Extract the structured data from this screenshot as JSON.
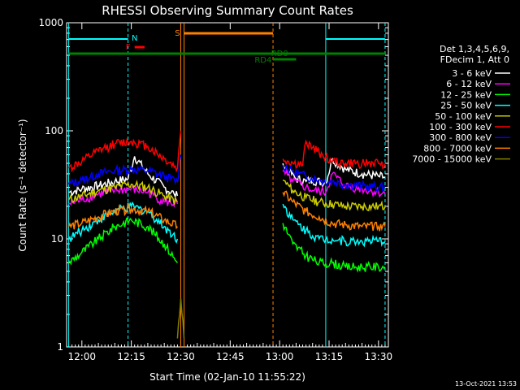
{
  "chart_data": {
    "type": "line",
    "title": "RHESSI Observing Summary Count Rates",
    "xlabel": "Start Time (02-Jan-10 11:55:22)",
    "ylabel": "Count Rate (s⁻¹ detector⁻¹)",
    "yscale": "log",
    "ylim": [
      1,
      1000
    ],
    "xlim": [
      "11:55:22",
      "13:33:00"
    ],
    "x_ticks": [
      "12:00",
      "12:15",
      "12:30",
      "12:45",
      "13:00",
      "13:15",
      "13:30"
    ],
    "y_ticks": [
      "1",
      "10",
      "100",
      "1000"
    ],
    "legend_header": [
      "Det 1,3,4,5,6,9,",
      "FDecim 1, Att 0"
    ],
    "legend_position": "right",
    "series": [
      {
        "name": "3 - 6 keV",
        "color": "#ffffff",
        "x": [
          "11:56",
          "12:00",
          "12:05",
          "12:10",
          "12:14",
          "12:16",
          "12:20",
          "12:25",
          "12:28",
          "12:29",
          "13:01",
          "13:03",
          "13:05",
          "13:08",
          "13:10",
          "13:14",
          "13:16",
          "13:20",
          "13:25",
          "13:30",
          "13:32"
        ],
        "values": [
          27,
          29,
          31,
          34,
          36,
          58,
          40,
          30,
          26,
          25,
          50,
          42,
          36,
          34,
          35,
          33,
          55,
          44,
          40,
          38,
          37
        ]
      },
      {
        "name": "6 - 12 keV",
        "color": "#ff00ff",
        "x": [
          "11:56",
          "12:00",
          "12:05",
          "12:10",
          "12:15",
          "12:20",
          "12:25",
          "12:29",
          "13:01",
          "13:04",
          "13:08",
          "13:10",
          "13:14",
          "13:16",
          "13:20",
          "13:25",
          "13:30",
          "13:32"
        ],
        "values": [
          21,
          23,
          26,
          28,
          29,
          27,
          22,
          21,
          42,
          34,
          30,
          28,
          27,
          40,
          31,
          29,
          27,
          26
        ]
      },
      {
        "name": "12 - 25 keV",
        "color": "#00ff00",
        "x": [
          "11:56",
          "12:00",
          "12:05",
          "12:10",
          "12:15",
          "12:20",
          "12:25",
          "12:29",
          "13:01",
          "13:04",
          "13:08",
          "13:12",
          "13:16",
          "13:20",
          "13:25",
          "13:30",
          "13:32"
        ],
        "values": [
          6,
          7.5,
          10,
          13,
          15,
          13,
          9,
          6,
          14,
          9,
          7,
          6,
          6,
          5.5,
          5.5,
          5.5,
          5.5
        ]
      },
      {
        "name": "25 - 50 keV",
        "color": "#00ffff",
        "x": [
          "11:56",
          "12:00",
          "12:05",
          "12:10",
          "12:15",
          "12:20",
          "12:25",
          "12:29",
          "13:01",
          "13:04",
          "13:08",
          "13:12",
          "13:16",
          "13:20",
          "13:25",
          "13:30",
          "13:32"
        ],
        "values": [
          10,
          12,
          15,
          18,
          20,
          18,
          13,
          10,
          21,
          15,
          12,
          10,
          10,
          9.5,
          9.5,
          9.5,
          9.5
        ]
      },
      {
        "name": "50 - 100 keV",
        "color": "#cccc00",
        "x": [
          "11:56",
          "12:00",
          "12:05",
          "12:10",
          "12:15",
          "12:20",
          "12:25",
          "12:29",
          "13:01",
          "13:04",
          "13:08",
          "13:12",
          "13:16",
          "13:20",
          "13:25",
          "13:30",
          "13:32"
        ],
        "values": [
          23,
          25,
          28,
          30,
          32,
          30,
          25,
          22,
          35,
          28,
          24,
          22,
          21,
          20,
          20,
          20,
          20
        ]
      },
      {
        "name": "100 - 300 keV",
        "color": "#ff0000",
        "x": [
          "11:56",
          "12:00",
          "12:05",
          "12:10",
          "12:15",
          "12:20",
          "12:25",
          "12:29",
          "12:30",
          "13:01",
          "13:04",
          "13:07",
          "13:08",
          "13:10",
          "13:13",
          "13:16",
          "13:20",
          "13:25",
          "13:30",
          "13:32"
        ],
        "values": [
          45,
          52,
          65,
          76,
          80,
          72,
          55,
          45,
          100,
          55,
          50,
          48,
          80,
          70,
          60,
          52,
          50,
          50,
          50,
          50
        ]
      },
      {
        "name": "300 - 800 keV",
        "color": "#0000ff",
        "x": [
          "11:56",
          "12:00",
          "12:05",
          "12:10",
          "12:15",
          "12:20",
          "12:25",
          "12:29",
          "12:30",
          "13:01",
          "13:04",
          "13:08",
          "13:12",
          "13:16",
          "13:20",
          "13:25",
          "13:30",
          "13:32"
        ],
        "values": [
          32,
          35,
          40,
          43,
          44,
          43,
          38,
          34,
          60,
          48,
          42,
          38,
          35,
          34,
          32,
          31,
          30,
          30
        ]
      },
      {
        "name": "800 - 7000 keV",
        "color": "#ff8000",
        "x": [
          "11:56",
          "12:00",
          "12:05",
          "12:10",
          "12:15",
          "12:20",
          "12:25",
          "12:29",
          "13:01",
          "13:04",
          "13:08",
          "13:12",
          "13:16",
          "13:20",
          "13:25",
          "13:30",
          "13:32"
        ],
        "values": [
          13,
          14,
          16,
          18,
          19,
          18,
          15,
          13,
          27,
          22,
          18,
          16,
          14,
          13.5,
          13,
          13,
          13
        ]
      },
      {
        "name": "7000 - 15000 keV",
        "color": "#808000",
        "x": [
          "12:29",
          "12:30",
          "12:31"
        ],
        "values": [
          1.2,
          2.8,
          1.2
        ]
      }
    ],
    "annotations": [
      {
        "label": "N",
        "color": "#00ffff"
      },
      {
        "label": "F",
        "color": "#ff0000"
      },
      {
        "label": "S",
        "color": "#ff8000"
      },
      {
        "label": "RD0",
        "color": "#008000"
      },
      {
        "label": "RD4",
        "color": "#008000"
      }
    ],
    "footer_date": "13-Oct-2021 13:53"
  }
}
